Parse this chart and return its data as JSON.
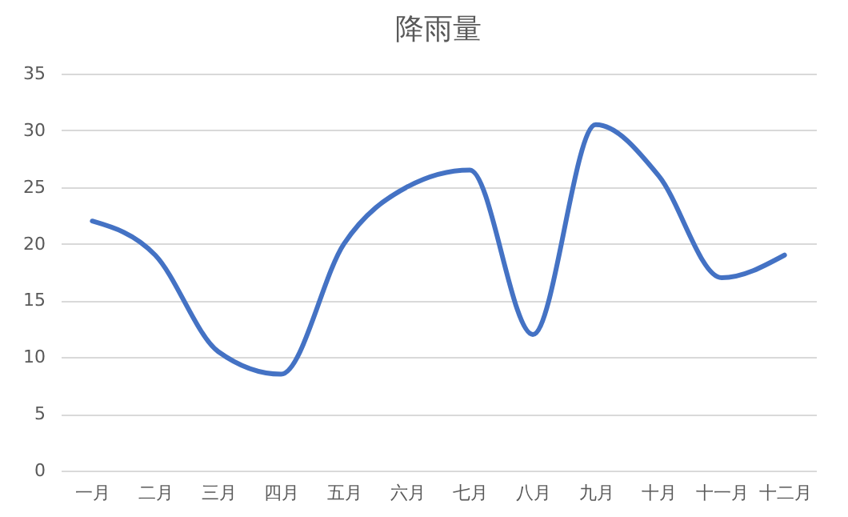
{
  "chart_data": {
    "type": "line",
    "title": "降雨量",
    "categories": [
      "一月",
      "二月",
      "三月",
      "四月",
      "五月",
      "六月",
      "七月",
      "八月",
      "九月",
      "十月",
      "十一月",
      "十二月"
    ],
    "series": [
      {
        "color": "#4472c4",
        "values": [
          22,
          19,
          10.5,
          8.5,
          20,
          25,
          26.5,
          12,
          30.5,
          26,
          17,
          19
        ]
      }
    ],
    "ylim": [
      0,
      35
    ],
    "yticks": [
      0,
      5,
      10,
      15,
      20,
      25,
      30,
      35
    ],
    "grid": "y",
    "legend": false,
    "marker": "none",
    "line_style": "solid"
  }
}
